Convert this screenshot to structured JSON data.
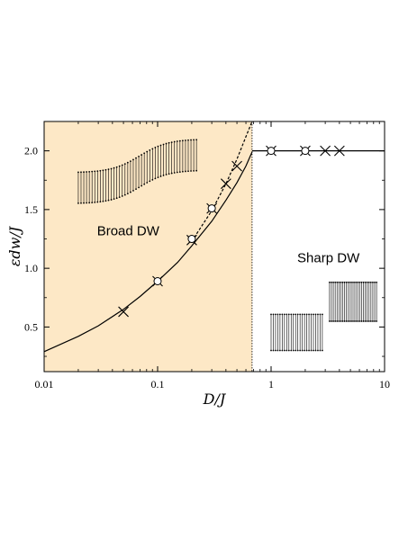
{
  "chart_data": {
    "type": "line",
    "title": "",
    "xlabel": "D/J",
    "ylabel": "εdw/J",
    "xscale": "log",
    "xlim": [
      0.01,
      10
    ],
    "ylim": [
      0.12,
      2.25
    ],
    "grid": false,
    "x_ticks": [
      "0.01",
      "0.1",
      "1",
      "10"
    ],
    "y_ticks": [
      "0.5",
      "1.0",
      "1.5",
      "2.0"
    ],
    "x_tick_values": [
      0.01,
      0.1,
      1,
      10
    ],
    "y_tick_values": [
      0.5,
      1.0,
      1.5,
      2.0
    ],
    "transition_x": 0.68,
    "region_labels": {
      "broad": "Broad DW",
      "sharp": "Sharp DW"
    },
    "colors": {
      "broad_region_fill": "#fde8c6",
      "line": "#000000",
      "marker_fill": "#ffffff"
    },
    "series": [
      {
        "style": "solid",
        "x": [
          0.01,
          0.02,
          0.03,
          0.05,
          0.07,
          0.1,
          0.15,
          0.2,
          0.3,
          0.4,
          0.5,
          0.6,
          0.68
        ],
        "y": [
          0.29,
          0.42,
          0.51,
          0.65,
          0.76,
          0.89,
          1.05,
          1.19,
          1.4,
          1.58,
          1.73,
          1.87,
          1.99
        ]
      },
      {
        "style": "solid",
        "x": [
          0.68,
          10
        ],
        "y": [
          2.0,
          2.0
        ]
      },
      {
        "style": "dashed",
        "x": [
          0.2,
          0.3,
          0.4,
          0.5,
          0.6,
          0.68
        ],
        "y": [
          1.23,
          1.49,
          1.72,
          1.93,
          2.12,
          2.25
        ]
      },
      {
        "marker": "cross",
        "x": [
          0.05,
          0.1,
          0.2,
          0.3,
          0.4,
          0.5,
          1.0,
          2.0,
          3.0,
          4.0
        ],
        "y": [
          0.63,
          0.89,
          1.24,
          1.51,
          1.72,
          1.87,
          2.0,
          2.0,
          2.0,
          2.0
        ]
      },
      {
        "marker": "open-circle",
        "x": [
          0.1,
          0.2,
          0.3,
          1.0,
          2.0
        ],
        "y": [
          0.89,
          1.25,
          1.51,
          2.0,
          2.0
        ]
      }
    ],
    "insets": [
      {
        "kind": "broad-wall-spins",
        "x_range": [
          0.02,
          0.22
        ],
        "y_range": [
          1.55,
          2.1
        ]
      },
      {
        "kind": "sharp-wall-spins",
        "x_range": [
          1.0,
          8.5
        ],
        "y_range": [
          0.3,
          0.88
        ]
      }
    ]
  }
}
